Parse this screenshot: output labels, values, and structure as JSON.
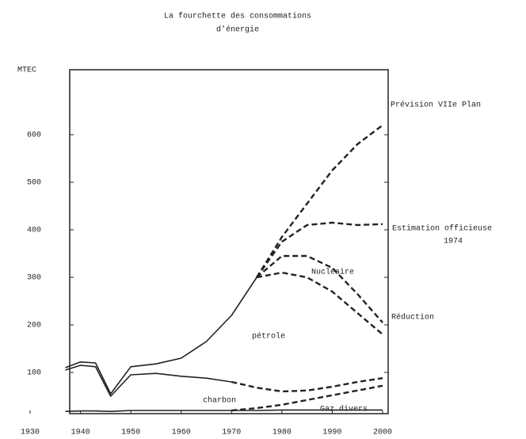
{
  "chart_data": {
    "type": "line",
    "title": [
      "La fourchette des consommations",
      "d'énergie"
    ],
    "ylabel": "MTEC",
    "x": [
      1937,
      1940,
      1943,
      1946,
      1950,
      1955,
      1960,
      1965,
      1970,
      1975,
      1980,
      1985,
      1990,
      1995,
      2000
    ],
    "series": [
      {
        "color": "#222",
        "dashed": false,
        "values": [
          110,
          122,
          120,
          55,
          112,
          118,
          130,
          165,
          220,
          300,
          null,
          null,
          null,
          null,
          null
        ]
      },
      {
        "color": "#222",
        "dashed": true,
        "values": [
          null,
          null,
          null,
          null,
          null,
          null,
          null,
          null,
          null,
          300,
          385,
          455,
          525,
          580,
          620
        ]
      },
      {
        "color": "#222",
        "dashed": true,
        "values": [
          null,
          null,
          null,
          null,
          null,
          null,
          null,
          null,
          null,
          300,
          375,
          410,
          415,
          410,
          412
        ]
      },
      {
        "color": "#222",
        "dashed": true,
        "values": [
          null,
          null,
          null,
          null,
          null,
          null,
          null,
          null,
          null,
          300,
          345,
          345,
          320,
          265,
          205
        ]
      },
      {
        "color": "#222",
        "dashed": true,
        "values": [
          null,
          null,
          null,
          null,
          null,
          null,
          null,
          null,
          null,
          300,
          310,
          300,
          270,
          225,
          180
        ]
      },
      {
        "color": "#222",
        "dashed": false,
        "values": [
          105,
          115,
          112,
          50,
          95,
          98,
          92,
          88,
          80,
          null,
          null,
          null,
          null,
          null,
          null
        ]
      },
      {
        "color": "#222",
        "dashed": true,
        "values": [
          null,
          null,
          null,
          null,
          null,
          null,
          null,
          null,
          80,
          68,
          60,
          62,
          70,
          80,
          88
        ]
      },
      {
        "color": "#222",
        "dashed": false,
        "values": [
          18,
          19,
          19,
          18,
          20,
          20,
          20,
          20,
          20,
          20,
          21,
          21,
          21,
          21,
          21
        ]
      },
      {
        "color": "#222",
        "dashed": true,
        "values": [
          null,
          null,
          null,
          null,
          null,
          null,
          null,
          null,
          20,
          25,
          32,
          42,
          52,
          62,
          72
        ]
      }
    ],
    "annotations": [
      "Prévision VIIe Plan",
      "Estimation officieuse",
      "1974",
      "Nucléaire",
      "Réduction",
      "pétrole",
      "charbon",
      "Gaz.divers"
    ],
    "xlim": [
      1930,
      2000
    ],
    "xticks": [
      1930,
      1940,
      1950,
      1960,
      1970,
      1980,
      1990,
      2000
    ],
    "ylim": [
      0,
      740
    ],
    "yticks": [
      100,
      200,
      300,
      400,
      500,
      600
    ]
  }
}
